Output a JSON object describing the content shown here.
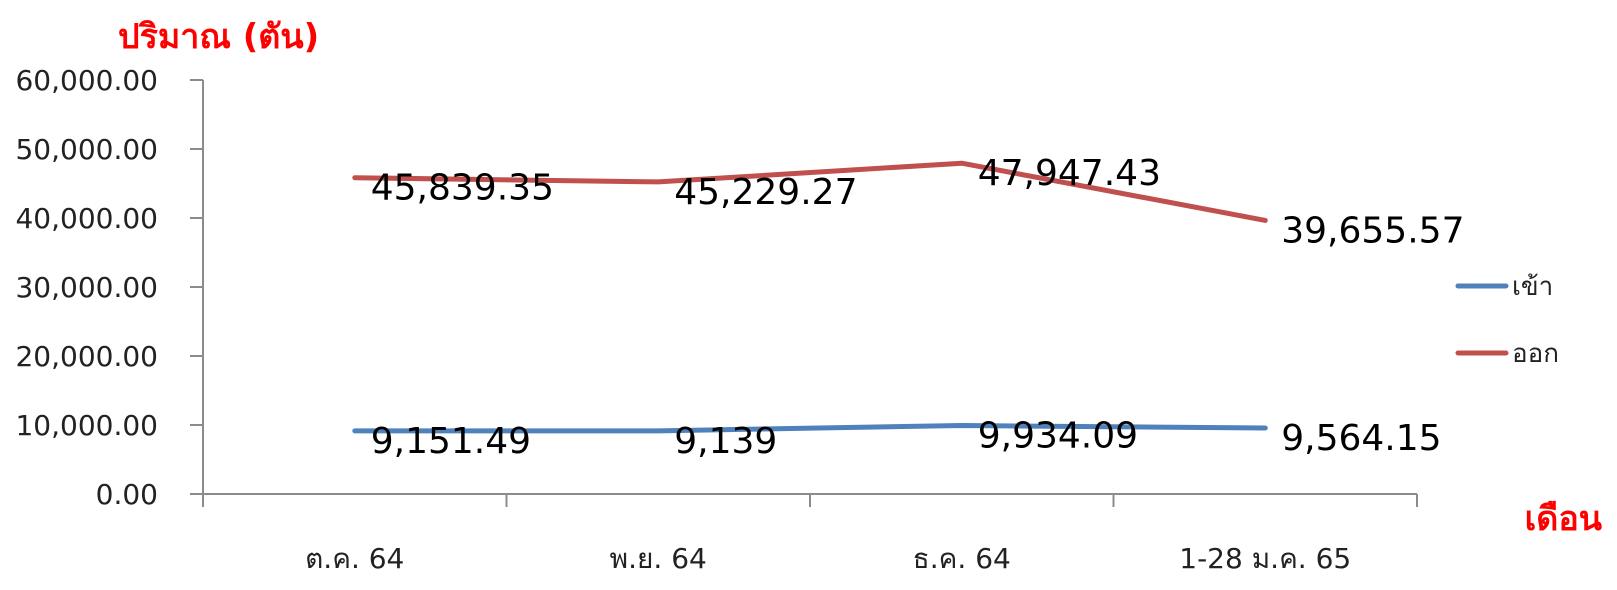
{
  "chart_data": {
    "type": "line",
    "ylabel": "ปริมาณ (ตัน)",
    "xlabel": "เดือน",
    "categories": [
      "ต.ค. 64",
      "พ.ย. 64",
      "ธ.ค. 64",
      "1-28 ม.ค. 65"
    ],
    "ylim": [
      0,
      60000
    ],
    "yticks": [
      "0.00",
      "10,000.00",
      "20,000.00",
      "30,000.00",
      "40,000.00",
      "50,000.00",
      "60,000.00"
    ],
    "grid": false,
    "legend_position": "right",
    "series": [
      {
        "name": "เข้า",
        "color": "#4f81bd",
        "values": [
          9151.49,
          9139,
          9934.09,
          9564.15
        ],
        "labels": [
          "9,151.49",
          "9,139",
          "9,934.09",
          "9,564.15"
        ]
      },
      {
        "name": "ออก",
        "color": "#c0504d",
        "values": [
          45839.35,
          45229.27,
          47947.43,
          39655.57
        ],
        "labels": [
          "45,839.35",
          "45,229.27",
          "47,947.43",
          "39,655.57"
        ]
      }
    ]
  },
  "colors": {
    "axis_title": "#ff0000",
    "axis_line": "#8c8c8c"
  }
}
